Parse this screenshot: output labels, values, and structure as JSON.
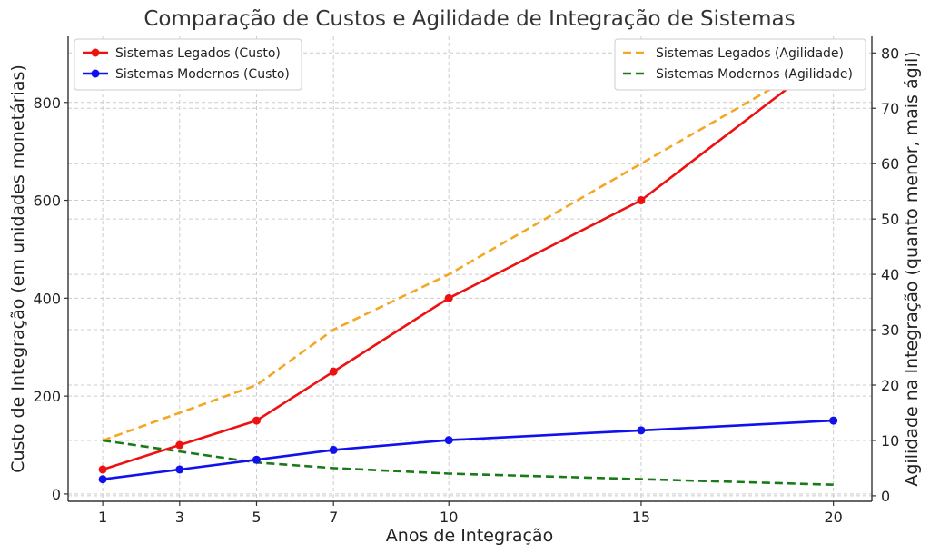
{
  "chart_data": {
    "type": "line",
    "title": "Comparação de Custos e Agilidade de Integração de Sistemas",
    "xlabel": "Anos de Integração",
    "ylabel_left": "Custo de Integração (em unidades monetárias)",
    "ylabel_right": "Agilidade na Integração (quanto menor, mais ágil)",
    "x": [
      1,
      3,
      5,
      7,
      10,
      15,
      20
    ],
    "x_ticks": [
      "1",
      "3",
      "5",
      "7",
      "10",
      "15",
      "20"
    ],
    "xlim": [
      0.1,
      21
    ],
    "ylim_left": [
      -15,
      935
    ],
    "yticks_left": [
      "0",
      "200",
      "400",
      "600",
      "800"
    ],
    "ylim_right": [
      -1,
      83
    ],
    "yticks_right": [
      "0",
      "10",
      "20",
      "30",
      "40",
      "50",
      "60",
      "70",
      "80"
    ],
    "grid": true,
    "series_left": [
      {
        "name": "Sistemas Legados (Custo)",
        "values": [
          50,
          100,
          150,
          250,
          400,
          600,
          900
        ],
        "color": "#ee1111",
        "style": "solid",
        "markers": true
      },
      {
        "name": "Sistemas Modernos (Custo)",
        "values": [
          30,
          50,
          70,
          90,
          110,
          130,
          150
        ],
        "color": "#1111ee",
        "style": "solid",
        "markers": true
      }
    ],
    "series_right": [
      {
        "name": "Sistemas Legados (Agilidade)",
        "values": [
          10,
          15,
          20,
          30,
          40,
          60,
          80
        ],
        "color": "#f5a623",
        "style": "dashed",
        "markers": false
      },
      {
        "name": "Sistemas Modernos (Agilidade)",
        "values": [
          10,
          8,
          6,
          5,
          4,
          3,
          2
        ],
        "color": "#1a7a1a",
        "style": "dashed",
        "markers": false
      }
    ],
    "legend_left_position": "top-left",
    "legend_right_position": "top-right"
  }
}
